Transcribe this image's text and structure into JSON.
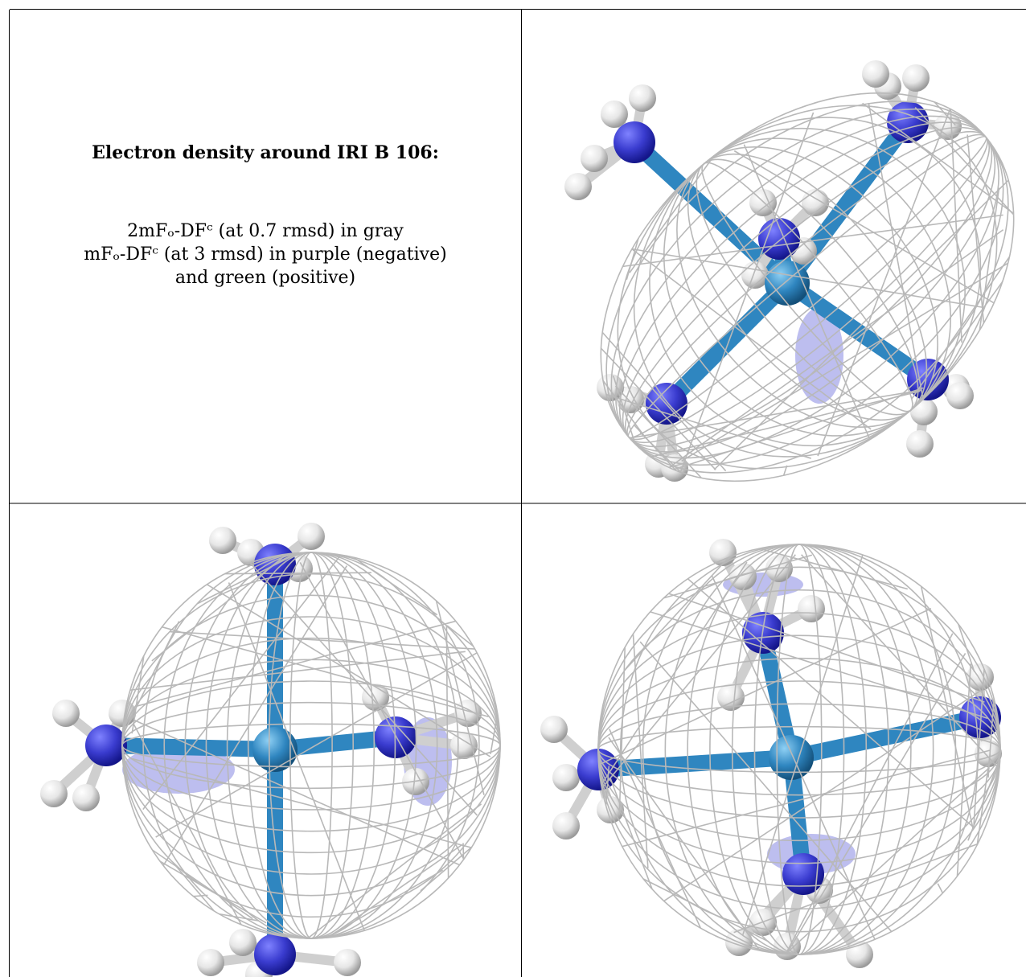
{
  "title": "Electron density around IRI B 106:",
  "legend": {
    "line1": "2mFₒ-DFᶜ (at 0.7 rmsd) in gray",
    "line2": "mFₒ-DFᶜ (at 3 rmsd) in purple (negative)",
    "line3": "and green (positive)"
  },
  "colors": {
    "mesh": "#b8b8b8",
    "nitrogen": "#3a3ccf",
    "metal": "#2f86c0",
    "hydrogen": "#e6e6e6",
    "negative_density": "#7b7de0",
    "border": "#000000"
  },
  "panels": [
    {
      "name": "view-1",
      "view": "tilted"
    },
    {
      "name": "view-2",
      "view": "top"
    },
    {
      "name": "view-3",
      "view": "side"
    }
  ]
}
